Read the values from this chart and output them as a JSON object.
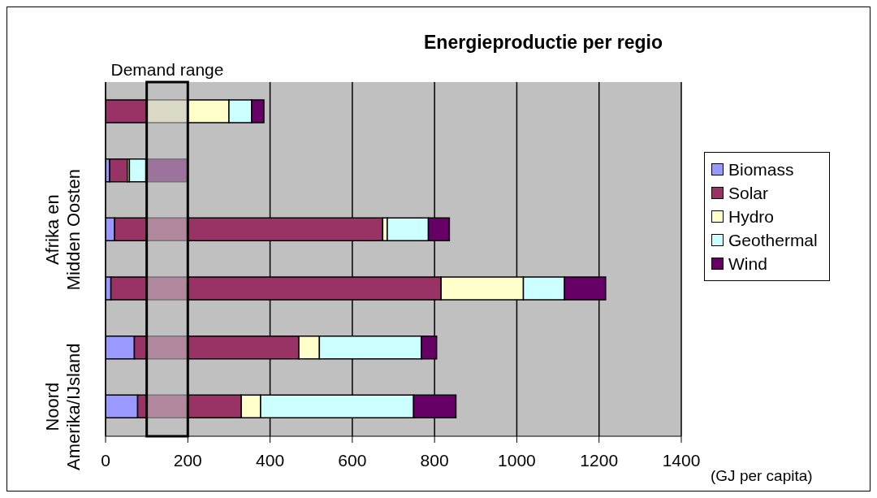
{
  "chart_data": {
    "type": "bar",
    "orientation": "horizontal",
    "stacked": true,
    "title": "Energieproductie per regio",
    "xlabel": "(GJ per capita)",
    "categories": [
      null,
      null,
      "Afrika en Midden Oosten",
      null,
      null,
      "Noord Amerika/IJsland"
    ],
    "series": [
      {
        "name": "Biomass",
        "color": "#9999ff",
        "values": [
          0,
          10,
          22,
          13,
          70,
          78
        ]
      },
      {
        "name": "Solar",
        "color": "#993366",
        "values": [
          100,
          43,
          652,
          803,
          400,
          252
        ]
      },
      {
        "name": "Hydro",
        "color": "#ffffcc",
        "values": [
          200,
          5,
          11,
          200,
          50,
          47
        ]
      },
      {
        "name": "Geothermal",
        "color": "#ccffff",
        "values": [
          55,
          40,
          100,
          100,
          248,
          372
        ]
      },
      {
        "name": "Wind",
        "color": "#660066",
        "values": [
          30,
          102,
          51,
          100,
          37,
          103
        ]
      }
    ],
    "xlim": [
      0,
      1400
    ],
    "xticks": [
      0,
      200,
      400,
      600,
      800,
      1000,
      1200,
      1400
    ],
    "bands": [
      {
        "axis": "x",
        "from": 100,
        "to": 200,
        "label": "Demand range",
        "color": "#c0c0c0"
      }
    ],
    "grid": "x",
    "legend": "right"
  }
}
